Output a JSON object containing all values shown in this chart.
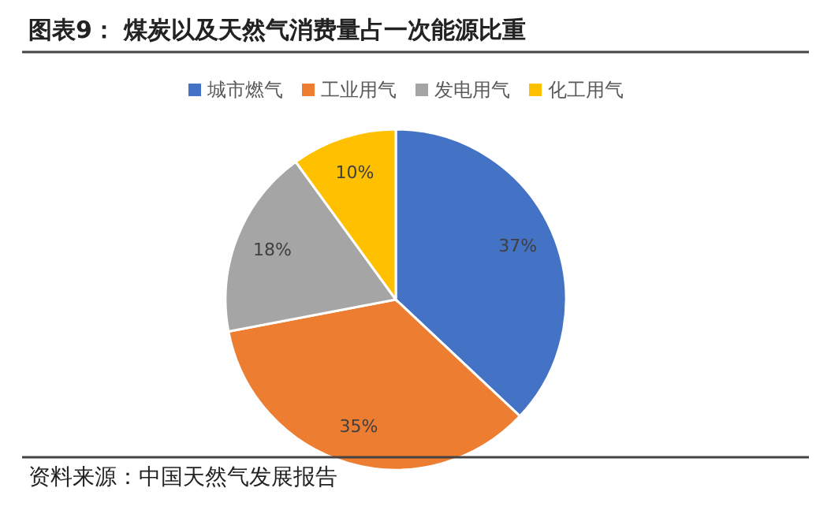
{
  "chart_data": {
    "type": "pie",
    "title": "图表9：  煤炭以及天然气消费量占一次能源比重",
    "categories": [
      "城市燃气",
      "工业用气",
      "发电用气",
      "化工用气"
    ],
    "values": [
      37,
      35,
      18,
      10
    ],
    "colors": [
      "#4472c4",
      "#ed7d31",
      "#a5a5a5",
      "#ffc000"
    ],
    "value_labels": [
      "37%",
      "35%",
      "18%",
      "10%"
    ],
    "legend": "top",
    "annotations": [
      "资料来源：中国天然气发展报告"
    ]
  }
}
